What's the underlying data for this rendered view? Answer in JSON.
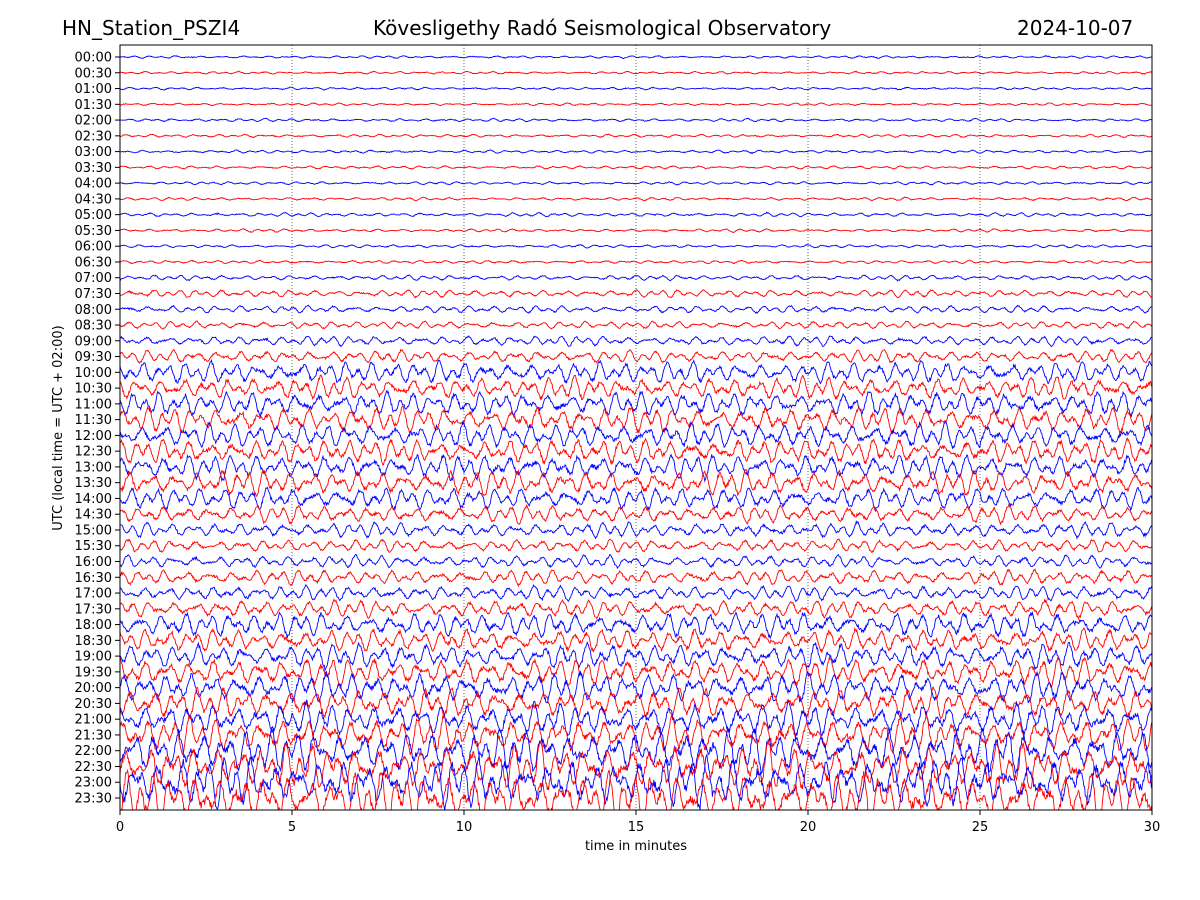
{
  "chart_data": {
    "type": "line",
    "title_left": "HN_Station_PSZI4",
    "title": "Kövesligethy Radó Seismological Observatory",
    "title_right": "2024-10-07",
    "xlabel": "time in minutes",
    "ylabel": "UTC (local time = UTC + 02:00)",
    "xlim": [
      0,
      30
    ],
    "xticks": [
      "0",
      "5",
      "10",
      "15",
      "20",
      "25",
      "30"
    ],
    "grid": "vertical dotted at each x tick",
    "row_labels": [
      "00:00",
      "00:30",
      "01:00",
      "01:30",
      "02:00",
      "02:30",
      "03:00",
      "03:30",
      "04:00",
      "04:30",
      "05:00",
      "05:30",
      "06:00",
      "06:30",
      "07:00",
      "07:30",
      "08:00",
      "08:30",
      "09:00",
      "09:30",
      "10:00",
      "10:30",
      "11:00",
      "11:30",
      "12:00",
      "12:30",
      "13:00",
      "13:30",
      "14:00",
      "14:30",
      "15:00",
      "15:30",
      "16:00",
      "16:30",
      "17:00",
      "17:30",
      "18:00",
      "18:30",
      "19:00",
      "19:30",
      "20:00",
      "20:30",
      "21:00",
      "21:30",
      "22:00",
      "22:30",
      "23:00",
      "23:30"
    ],
    "row_colors": [
      "#0000ff",
      "#ff0000"
    ],
    "relative_amplitude": [
      0.1,
      0.1,
      0.1,
      0.1,
      0.12,
      0.12,
      0.12,
      0.12,
      0.12,
      0.12,
      0.15,
      0.12,
      0.12,
      0.12,
      0.2,
      0.3,
      0.3,
      0.3,
      0.4,
      0.5,
      0.9,
      0.9,
      1.0,
      1.0,
      1.0,
      1.0,
      1.0,
      1.0,
      0.9,
      0.7,
      0.6,
      0.5,
      0.5,
      0.6,
      0.6,
      0.7,
      1.0,
      0.9,
      1.0,
      1.1,
      1.2,
      1.2,
      1.3,
      1.4,
      1.7,
      1.8,
      2.0,
      2.0
    ]
  }
}
